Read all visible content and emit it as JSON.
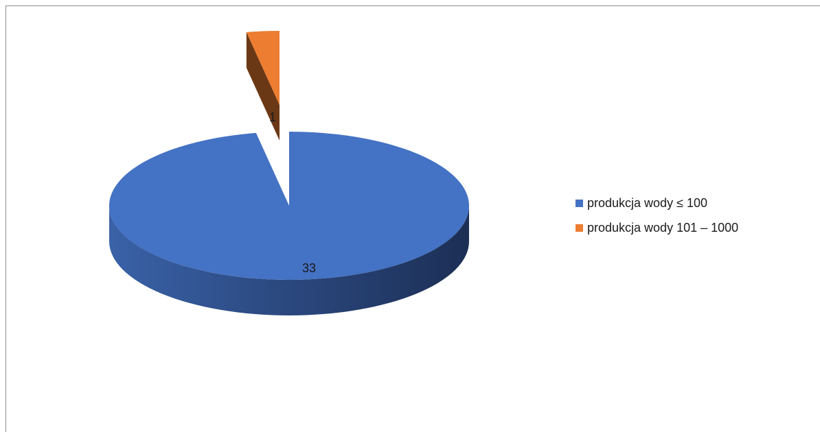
{
  "chart_data": {
    "type": "pie",
    "style": "3d-exploded",
    "categories": [
      "produkcja wody ≤ 100",
      "produkcja wody 101 – 1000"
    ],
    "values": [
      33,
      1
    ],
    "colors": [
      "#4472C4",
      "#ED7D31"
    ],
    "data_labels": [
      "33",
      "1"
    ],
    "legend_position": "right",
    "title": ""
  }
}
